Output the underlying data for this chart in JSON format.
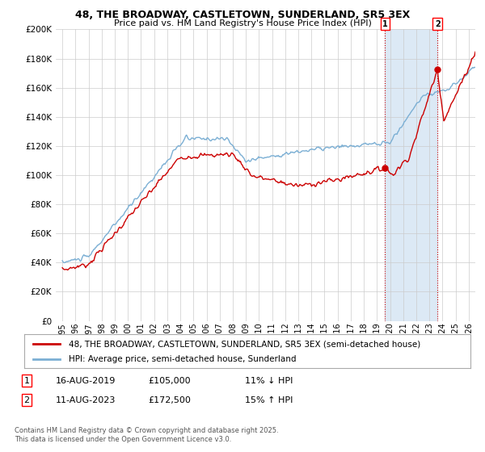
{
  "title_line1": "48, THE BROADWAY, CASTLETOWN, SUNDERLAND, SR5 3EX",
  "title_line2": "Price paid vs. HM Land Registry's House Price Index (HPI)",
  "legend_line1": "48, THE BROADWAY, CASTLETOWN, SUNDERLAND, SR5 3EX (semi-detached house)",
  "legend_line2": "HPI: Average price, semi-detached house, Sunderland",
  "annotation1_date": "16-AUG-2019",
  "annotation1_price": "£105,000",
  "annotation1_hpi": "11% ↓ HPI",
  "annotation2_date": "11-AUG-2023",
  "annotation2_price": "£172,500",
  "annotation2_hpi": "15% ↑ HPI",
  "footnote": "Contains HM Land Registry data © Crown copyright and database right 2025.\nThis data is licensed under the Open Government Licence v3.0.",
  "red_color": "#cc0000",
  "blue_color": "#7bafd4",
  "shade_color": "#dce9f5",
  "annotation_color": "#cc0000",
  "grid_color": "#cccccc",
  "background_color": "#ffffff",
  "ylim": [
    0,
    200000
  ],
  "yticks": [
    0,
    20000,
    40000,
    60000,
    80000,
    100000,
    120000,
    140000,
    160000,
    180000,
    200000
  ],
  "sale1_x": 2019.62,
  "sale1_y": 105000,
  "sale2_x": 2023.61,
  "sale2_y": 172500,
  "xmin": 1995,
  "xmax": 2026
}
